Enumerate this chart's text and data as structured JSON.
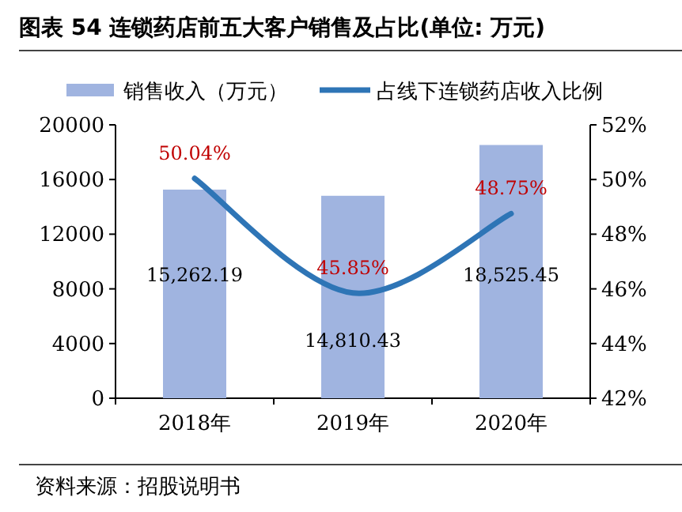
{
  "chart_data": {
    "type": "bar",
    "title": "图表 54 连锁药店前五大客户销售及占比(单位: 万元)",
    "categories": [
      "2018年",
      "2019年",
      "2020年"
    ],
    "series": [
      {
        "name": "销售收入（万元）",
        "color": "#a0b4e0",
        "values": [
          15262.19,
          14810.43,
          18525.45
        ],
        "value_labels": [
          "15,262.19",
          "14,810.43",
          "18,525.45"
        ]
      },
      {
        "name": "占线下连锁药店收入比例",
        "type": "line",
        "axis": "y2",
        "color": "#2e75b6",
        "values": [
          50.04,
          45.85,
          48.75
        ],
        "value_labels": [
          "50.04%",
          "45.85%",
          "48.75%"
        ]
      }
    ],
    "ylim": [
      0,
      20000
    ],
    "yticks": [
      0,
      4000,
      8000,
      12000,
      16000,
      20000
    ],
    "y2lim": [
      42,
      52
    ],
    "y2ticks": [
      {
        "value": 42,
        "label": "42%"
      },
      {
        "value": 44,
        "label": "44%"
      },
      {
        "value": 46,
        "label": "46%"
      },
      {
        "value": 48,
        "label": "48%"
      },
      {
        "value": 50,
        "label": "50%"
      },
      {
        "value": 52,
        "label": "52%"
      }
    ],
    "legend": "top",
    "annotations": [
      "资料来源：招股说明书"
    ]
  }
}
